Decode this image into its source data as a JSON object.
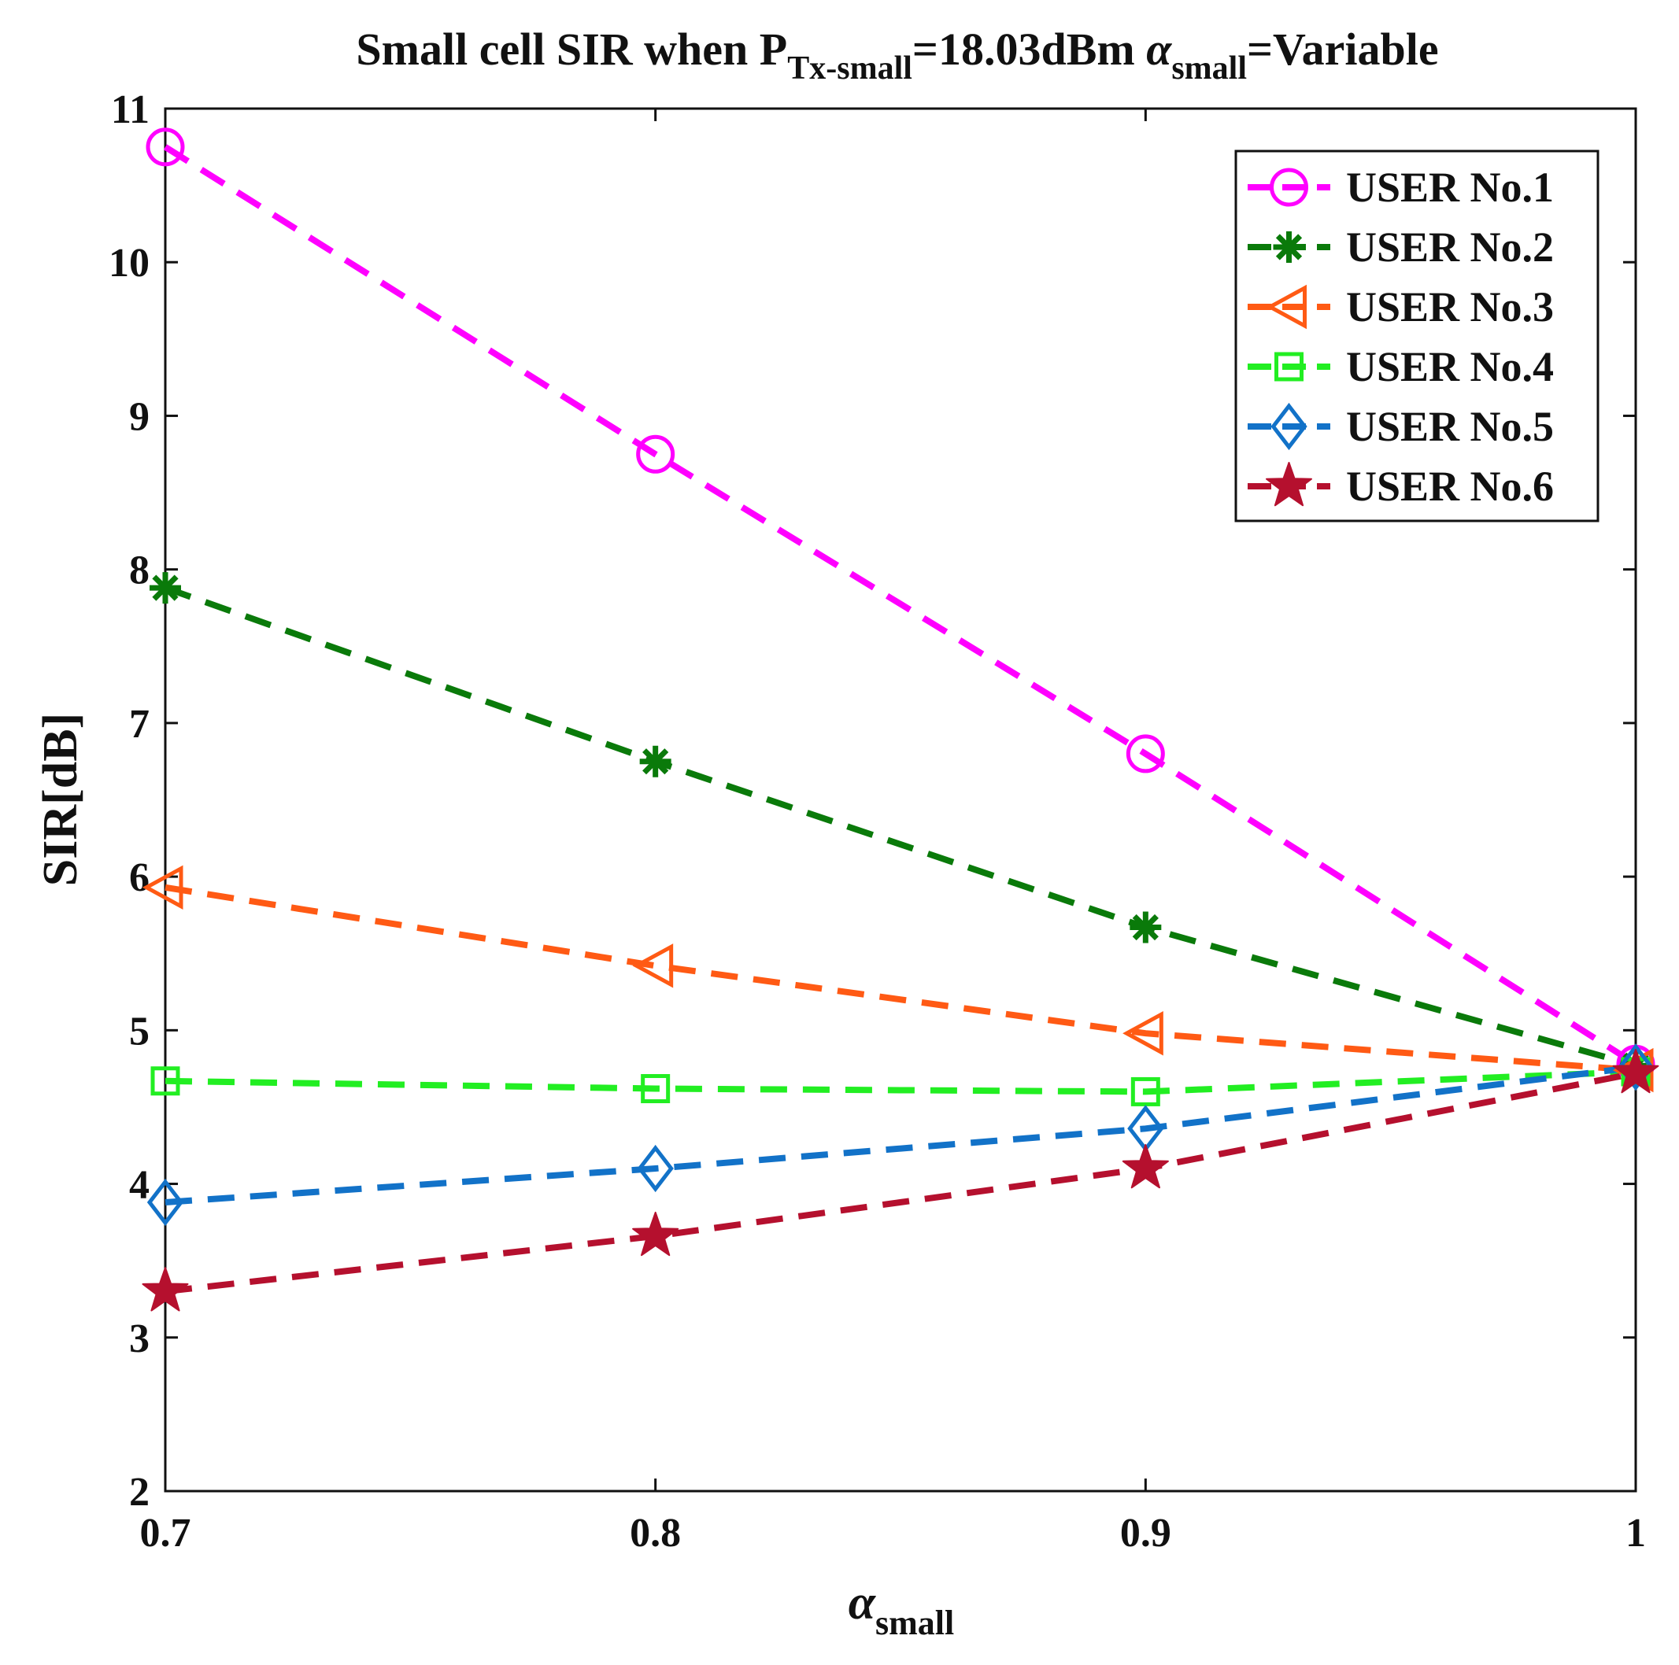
{
  "chart_data": {
    "type": "line",
    "title": {
      "part1": "Small cell  SIR  when P",
      "sub1": "Tx-small",
      "part2": "=18.03dBm ",
      "greek": "α",
      "sub2": "small",
      "part3": "=Variable"
    },
    "xlabel": {
      "main": "α",
      "sub": "small"
    },
    "ylabel": "SIR[dB]",
    "xlim": [
      0.7,
      1.0
    ],
    "ylim": [
      2,
      11
    ],
    "x_ticks": [
      "0.7",
      "0.8",
      "0.9",
      "1"
    ],
    "y_ticks": [
      "2",
      "3",
      "4",
      "5",
      "6",
      "7",
      "8",
      "9",
      "10",
      "11"
    ],
    "x": [
      0.7,
      0.8,
      0.9,
      1.0
    ],
    "grid": false,
    "legend_position": "top-right",
    "series": [
      {
        "name": "USER No.1",
        "color": "#ff00ff",
        "marker": "circle",
        "values": [
          10.75,
          8.75,
          6.8,
          4.78
        ]
      },
      {
        "name": "USER No.2",
        "color": "#0a7a0a",
        "marker": "asterisk",
        "values": [
          7.88,
          6.75,
          5.67,
          4.77
        ]
      },
      {
        "name": "USER No.3",
        "color": "#ff5a14",
        "marker": "triangle-left",
        "values": [
          5.93,
          5.42,
          4.98,
          4.74
        ]
      },
      {
        "name": "USER No.4",
        "color": "#22ee22",
        "marker": "square",
        "values": [
          4.67,
          4.62,
          4.6,
          4.73
        ]
      },
      {
        "name": "USER No.5",
        "color": "#1272c8",
        "marker": "diamond",
        "values": [
          3.88,
          4.1,
          4.36,
          4.76
        ]
      },
      {
        "name": "USER No.6",
        "color": "#b5102e",
        "marker": "star",
        "values": [
          3.3,
          3.66,
          4.1,
          4.72
        ]
      }
    ]
  }
}
